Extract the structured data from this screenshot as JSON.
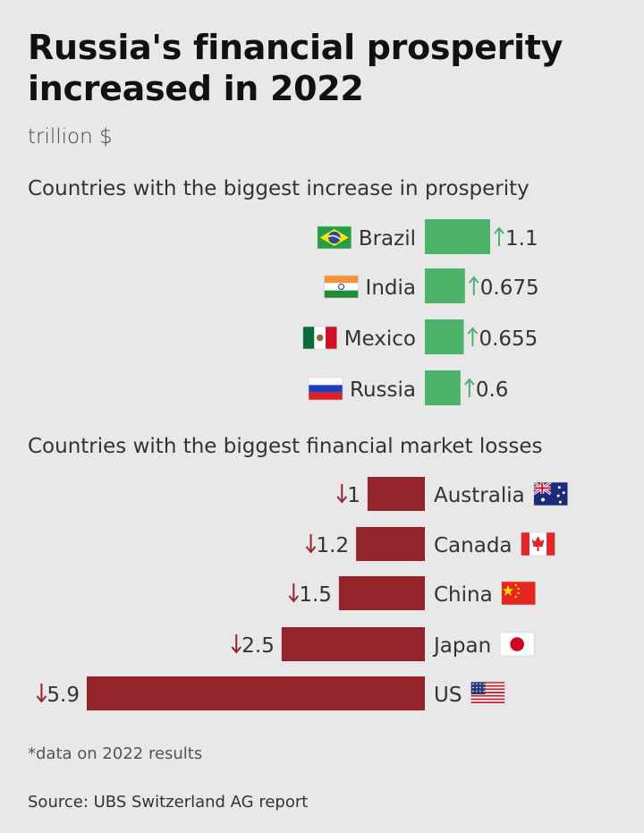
{
  "title": "Russia's financial prosperity increased in 2022",
  "unit": "trillion $",
  "footnote": "*data on 2022 results",
  "source": "Source: UBS Switzerland AG report",
  "colors": {
    "gain": "#4db36b",
    "loss": "#94232b",
    "gain_arrow": "#4db36b",
    "loss_arrow": "#94232b"
  },
  "chart_data": [
    {
      "type": "bar",
      "title": "Countries with the biggest increase in prosperity",
      "direction": "increase",
      "categories": [
        "Brazil",
        "India",
        "Mexico",
        "Russia"
      ],
      "values": [
        1.1,
        0.675,
        0.655,
        0.6
      ],
      "value_labels": [
        "1.1",
        "0.675",
        "0.655",
        "0.6"
      ],
      "flags": [
        "brazil-flag-icon",
        "india-flag-icon",
        "mexico-flag-icon",
        "russia-flag-icon"
      ],
      "xlabel": "",
      "ylabel": "trillion $"
    },
    {
      "type": "bar",
      "title": "Countries with the biggest financial market losses",
      "direction": "decrease",
      "categories": [
        "Australia",
        "Canada",
        "China",
        "Japan",
        "US"
      ],
      "values": [
        1,
        1.2,
        1.5,
        2.5,
        5.9
      ],
      "value_labels": [
        "1",
        "1.2",
        "1.5",
        "2.5",
        "5.9"
      ],
      "flags": [
        "australia-flag-icon",
        "canada-flag-icon",
        "china-flag-icon",
        "japan-flag-icon",
        "us-flag-icon"
      ],
      "xlabel": "",
      "ylabel": "trillion $"
    }
  ]
}
